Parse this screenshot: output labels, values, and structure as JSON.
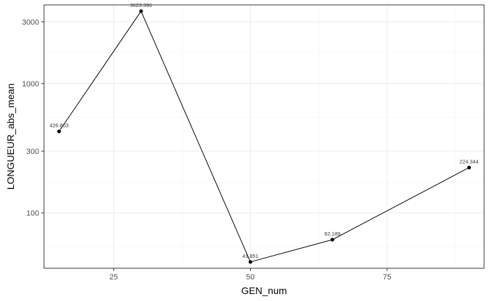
{
  "chart_data": {
    "type": "line",
    "xlabel": "GEN_num",
    "ylabel": "LONGUEUR_abs_mean",
    "x": [
      15,
      30,
      50,
      65,
      90
    ],
    "y": [
      426.803,
      3623.396,
      41.851,
      62.189,
      224.344
    ],
    "point_labels": [
      "426.803",
      "3623.396",
      "41.851",
      "62.189",
      "224.344"
    ],
    "xlim": [
      12.25,
      92.75
    ],
    "ylim": [
      37.4,
      4055
    ],
    "yscale": "log10",
    "x_ticks": [
      25,
      50,
      75
    ],
    "x_tick_labels": [
      "25",
      "50",
      "75"
    ],
    "x_minor_ticks": [
      12.5,
      37.5,
      62.5,
      87.5
    ],
    "y_ticks": [
      100,
      300,
      1000,
      3000
    ],
    "y_tick_labels": [
      "100",
      "300",
      "1000",
      "3000"
    ],
    "y_minor_ticks": [
      55,
      173,
      548,
      1732
    ],
    "grid": true,
    "legend": "none",
    "colors": {
      "line": "#000000",
      "point": "#000000",
      "grid": "#ebebeb",
      "panel_border": "#333333"
    }
  }
}
